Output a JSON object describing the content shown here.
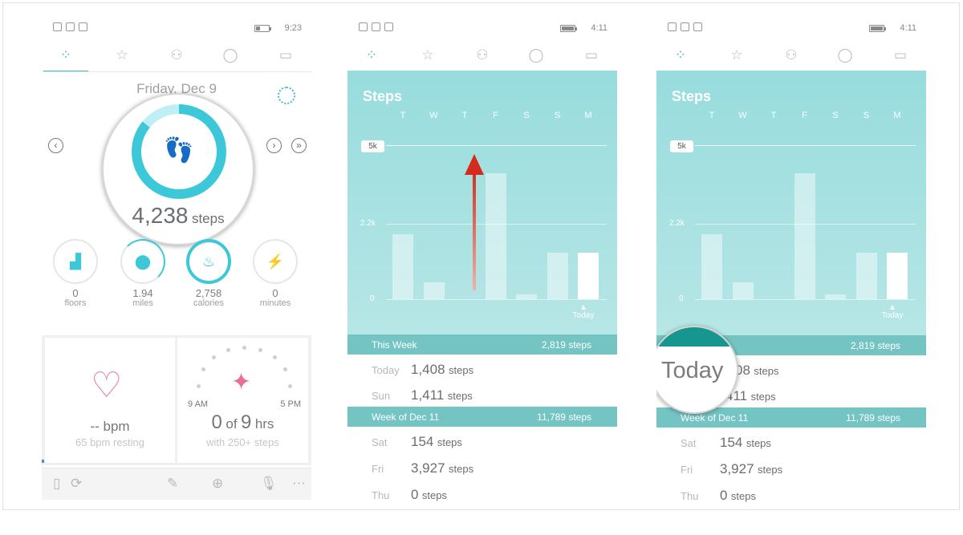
{
  "screen1": {
    "clock": "9:23",
    "date": "Friday, Dec 9",
    "steps_value": "4,238",
    "steps_unit": "steps",
    "stats": [
      {
        "value": "0",
        "label": "floors",
        "icon": "stairs-icon",
        "glyph": "▟"
      },
      {
        "value": "1.94",
        "label": "miles",
        "icon": "location-pin-icon",
        "glyph": "⬤"
      },
      {
        "value": "2,758",
        "label": "calories",
        "icon": "flame-icon",
        "glyph": "♨"
      },
      {
        "value": "0",
        "label": "minutes",
        "icon": "bolt-icon",
        "glyph": "⚡"
      }
    ],
    "heart": {
      "value": "-- bpm",
      "resting": "65 bpm resting"
    },
    "hourly": {
      "start": "9 AM",
      "end": "5 PM",
      "zero": "0",
      "of": "of",
      "nine": "9",
      "hrs": "hrs",
      "note": "with 250+ steps"
    }
  },
  "screen2": {
    "clock": "4:11",
    "title": "Steps",
    "days": [
      "T",
      "W",
      "T",
      "F",
      "S",
      "S",
      "M"
    ],
    "y_labels": {
      "goal": "5k",
      "mid": "2.2k",
      "zero": "0"
    },
    "today_label": "Today",
    "this_week": {
      "label": "This Week",
      "value": "2,819 steps"
    },
    "rows_a": [
      {
        "day": "Today",
        "num": "1,408",
        "unit": "steps"
      },
      {
        "day": "Sun",
        "num": "1,411",
        "unit": "steps"
      }
    ],
    "week_of": {
      "label": "Week of Dec 11",
      "value": "11,789 steps"
    },
    "rows_b": [
      {
        "day": "Sat",
        "num": "154",
        "unit": "steps"
      },
      {
        "day": "Fri",
        "num": "3,927",
        "unit": "steps"
      },
      {
        "day": "Thu",
        "num": "0",
        "unit": "steps"
      }
    ]
  },
  "screen3": {
    "clock": "4:11",
    "title": "Steps",
    "days": [
      "T",
      "W",
      "T",
      "F",
      "S",
      "S",
      "M"
    ],
    "y_labels": {
      "goal": "5k",
      "mid": "2.2k",
      "zero": "0"
    },
    "today_label": "Today",
    "this_week": {
      "value": "2,819 steps"
    },
    "lens_text": "Today",
    "rows_a": [
      {
        "num": "08",
        "unit": "steps"
      },
      {
        "num": "411",
        "unit": "steps"
      }
    ],
    "week_of": {
      "label": "Week of Dec 11",
      "value": "11,789 steps"
    },
    "rows_b": [
      {
        "day": "Sat",
        "num": "154",
        "unit": "steps"
      },
      {
        "day": "Fri",
        "num": "3,927",
        "unit": "steps"
      },
      {
        "day": "Thu",
        "num": "0",
        "unit": "steps"
      }
    ]
  },
  "chart_data": {
    "type": "bar",
    "categories": [
      "T",
      "W",
      "T",
      "F",
      "S",
      "S",
      "M"
    ],
    "values": [
      2100,
      550,
      0,
      4100,
      150,
      1500,
      1500
    ],
    "ylim": [
      0,
      5000
    ],
    "goal": 5000,
    "highlight_last": true
  },
  "colors": {
    "accent": "#3cc8d8",
    "panel": "#a7e0e0",
    "header_row": "#75c4c4",
    "heart": "#e9819b",
    "arrow": "#d52b1e"
  }
}
